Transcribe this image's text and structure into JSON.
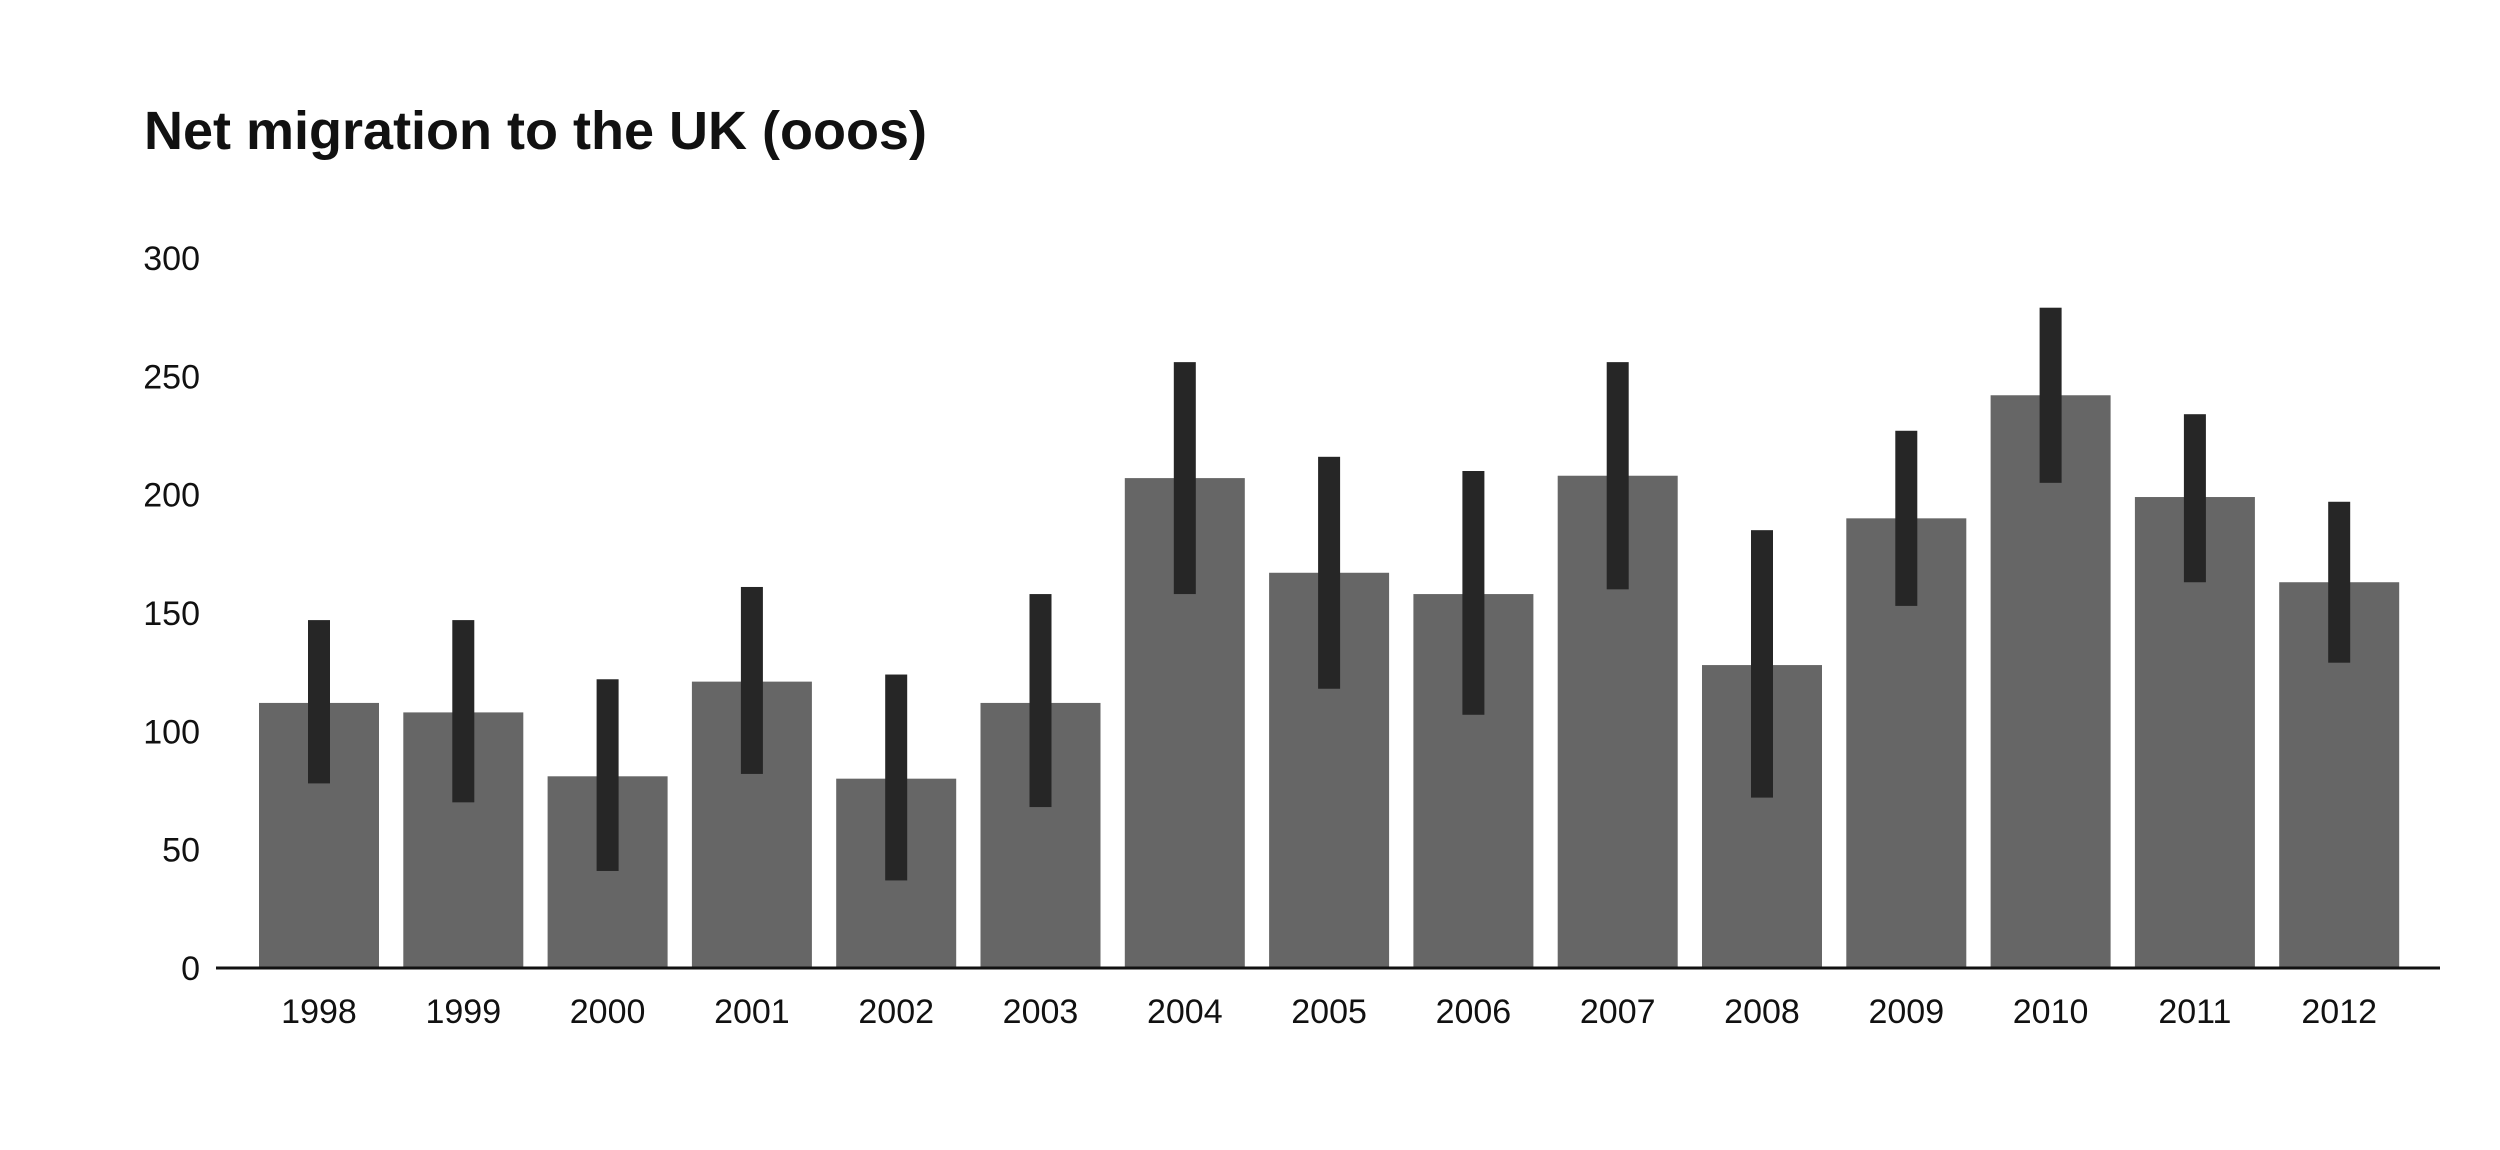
{
  "chart_data": {
    "type": "bar",
    "title": "Net migration to the UK (ooos)",
    "xlabel": "",
    "ylabel": "",
    "categories": [
      "1998",
      "1999",
      "2000",
      "2001",
      "2002",
      "2003",
      "2004",
      "2005",
      "2006",
      "2007",
      "2008",
      "2009",
      "2010",
      "2011",
      "2012"
    ],
    "values": [
      112,
      108,
      81,
      121,
      80,
      112,
      207,
      167,
      158,
      208,
      128,
      190,
      242,
      199,
      163
    ],
    "error_low": [
      78,
      70,
      41,
      82,
      37,
      68,
      158,
      118,
      107,
      160,
      72,
      153,
      205,
      163,
      129
    ],
    "error_high": [
      147,
      147,
      122,
      161,
      124,
      158,
      256,
      216,
      210,
      256,
      185,
      227,
      279,
      234,
      197
    ],
    "ylim": [
      0,
      300
    ],
    "yticks": [
      0,
      50,
      100,
      150,
      200,
      250,
      300
    ],
    "grid": false,
    "legend": "none",
    "colors": {
      "bar": "#666666",
      "error_bar": "#262626",
      "axis": "#111111",
      "text": "#111111"
    }
  }
}
